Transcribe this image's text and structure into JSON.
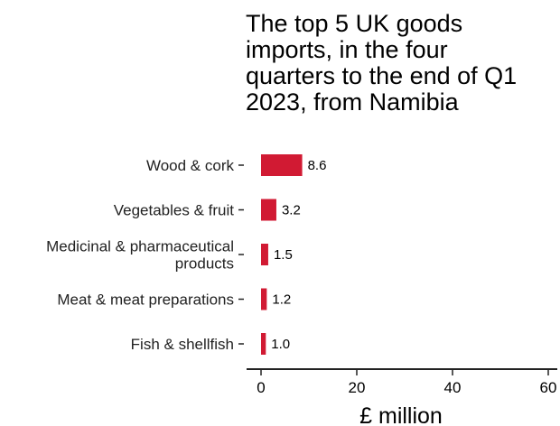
{
  "chart_data": {
    "type": "bar",
    "orientation": "horizontal",
    "title_lines": [
      "The top 5 UK goods",
      "imports, in the four",
      "quarters to the end of Q1",
      "2023, from Namibia"
    ],
    "categories": [
      [
        "Wood & cork"
      ],
      [
        "Vegetables & fruit"
      ],
      [
        "Medicinal & pharmaceutical",
        "products"
      ],
      [
        "Meat & meat preparations"
      ],
      [
        "Fish & shellfish"
      ]
    ],
    "values": [
      8.6,
      3.2,
      1.5,
      1.2,
      1.0
    ],
    "value_labels": [
      "8.6",
      "3.2",
      "1.5",
      "1.2",
      "1.0"
    ],
    "xlabel": "£ million",
    "xlim": [
      0,
      60
    ],
    "xticks": [
      0,
      20,
      40,
      60
    ],
    "xtick_labels": [
      "0",
      "20",
      "40",
      "60"
    ],
    "grid": false,
    "legend": "none",
    "bar_color": "#d11a33"
  }
}
